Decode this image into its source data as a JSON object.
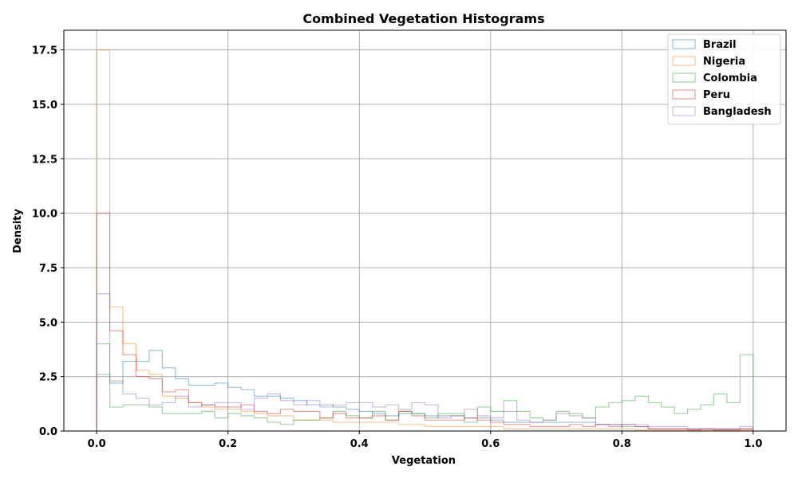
{
  "chart_data": {
    "type": "histogram-step",
    "title": "Combined Vegetation Histograms",
    "xlabel": "Vegetation",
    "ylabel": "Density",
    "xlim": [
      -0.05,
      1.05
    ],
    "ylim": [
      0,
      18.4
    ],
    "xticks": [
      0.0,
      0.2,
      0.4,
      0.6,
      0.8,
      1.0
    ],
    "xtick_labels": [
      "0.0",
      "0.2",
      "0.4",
      "0.6",
      "0.8",
      "1.0"
    ],
    "yticks": [
      0.0,
      2.5,
      5.0,
      7.5,
      10.0,
      12.5,
      15.0,
      17.5
    ],
    "ytick_labels": [
      "0.0",
      "2.5",
      "5.0",
      "7.5",
      "10.0",
      "12.5",
      "15.0",
      "17.5"
    ],
    "grid": true,
    "legend_position": "top-right",
    "bin_edges": [
      0.0,
      0.02,
      0.04,
      0.06,
      0.08,
      0.1,
      0.12,
      0.14,
      0.16,
      0.18,
      0.2,
      0.22,
      0.24,
      0.26,
      0.28,
      0.3,
      0.32,
      0.34,
      0.36,
      0.38,
      0.4,
      0.42,
      0.44,
      0.46,
      0.48,
      0.5,
      0.52,
      0.54,
      0.56,
      0.58,
      0.6,
      0.62,
      0.64,
      0.66,
      0.68,
      0.7,
      0.72,
      0.74,
      0.76,
      0.78,
      0.8,
      0.82,
      0.84,
      0.86,
      0.88,
      0.9,
      0.92,
      0.94,
      0.96,
      0.98,
      1.0
    ],
    "series": [
      {
        "name": "Brazil",
        "color": "#1f77b4",
        "values": [
          2.6,
          2.2,
          3.2,
          3.2,
          3.7,
          2.9,
          2.4,
          2.1,
          2.1,
          2.2,
          2.0,
          1.9,
          1.6,
          1.6,
          1.5,
          1.4,
          1.2,
          1.2,
          1.1,
          1.0,
          0.9,
          0.8,
          0.7,
          0.8,
          0.8,
          0.7,
          0.7,
          0.7,
          0.6,
          0.6,
          0.5,
          0.4,
          0.4,
          0.4,
          0.4,
          0.4,
          0.4,
          0.4,
          0.3,
          0.3,
          0.2,
          0.2,
          0.1,
          0.1,
          0.1,
          0.1,
          0.1,
          0.1,
          0.1,
          0.1
        ]
      },
      {
        "name": "Nigeria",
        "color": "#ff7f0e",
        "values": [
          17.5,
          5.7,
          4.0,
          2.8,
          2.6,
          1.6,
          1.5,
          1.3,
          1.1,
          1.0,
          1.0,
          0.9,
          0.8,
          0.7,
          0.7,
          0.5,
          0.5,
          0.5,
          0.4,
          0.4,
          0.4,
          0.4,
          0.4,
          0.3,
          0.3,
          0.2,
          0.2,
          0.2,
          0.2,
          0.2,
          0.2,
          0.1,
          0.1,
          0.1,
          0.1,
          0.1,
          0.1,
          0.1,
          0.1,
          0.1,
          0.1,
          0.05,
          0.05,
          0.05,
          0.05,
          0.05,
          0.05,
          0.05,
          0.05,
          0.05
        ]
      },
      {
        "name": "Colombia",
        "color": "#2ca02c",
        "values": [
          4.0,
          1.1,
          1.2,
          1.2,
          1.1,
          0.8,
          0.8,
          0.8,
          0.9,
          0.6,
          0.8,
          0.7,
          0.6,
          0.4,
          0.3,
          0.5,
          0.5,
          0.6,
          0.9,
          0.7,
          0.6,
          0.9,
          0.5,
          0.9,
          0.8,
          0.6,
          0.8,
          0.8,
          0.4,
          1.1,
          0.9,
          1.4,
          0.9,
          0.6,
          0.5,
          0.9,
          0.8,
          0.6,
          1.1,
          1.3,
          1.4,
          1.6,
          1.3,
          1.1,
          0.8,
          1.0,
          1.2,
          1.7,
          1.3,
          3.5
        ]
      },
      {
        "name": "Peru",
        "color": "#d62728",
        "values": [
          10.0,
          4.6,
          3.5,
          2.5,
          2.4,
          1.8,
          1.9,
          1.3,
          1.2,
          1.1,
          1.1,
          1.2,
          0.9,
          0.8,
          1.0,
          0.9,
          0.9,
          0.6,
          0.8,
          0.6,
          0.6,
          0.7,
          0.5,
          0.9,
          0.7,
          0.5,
          0.5,
          0.5,
          0.6,
          0.5,
          0.4,
          0.3,
          0.3,
          0.2,
          0.2,
          0.2,
          0.3,
          0.2,
          0.3,
          0.2,
          0.3,
          0.2,
          0.1,
          0.1,
          0.1,
          0.05,
          0.1,
          0.05,
          0.05,
          0.1
        ]
      },
      {
        "name": "Bangladesh",
        "color": "#9467bd",
        "values": [
          6.3,
          2.3,
          1.7,
          1.5,
          1.2,
          1.3,
          1.6,
          1.1,
          1.2,
          1.3,
          1.3,
          1.0,
          1.5,
          1.7,
          1.4,
          1.2,
          1.4,
          1.1,
          1.2,
          1.3,
          1.3,
          1.1,
          1.2,
          1.0,
          1.3,
          1.2,
          0.6,
          0.7,
          1.0,
          0.7,
          0.6,
          0.9,
          0.5,
          0.4,
          0.5,
          0.8,
          0.7,
          0.6,
          0.3,
          0.3,
          0.3,
          0.3,
          0.2,
          0.2,
          0.2,
          0.1,
          0.1,
          0.1,
          0.1,
          0.2
        ]
      }
    ]
  }
}
